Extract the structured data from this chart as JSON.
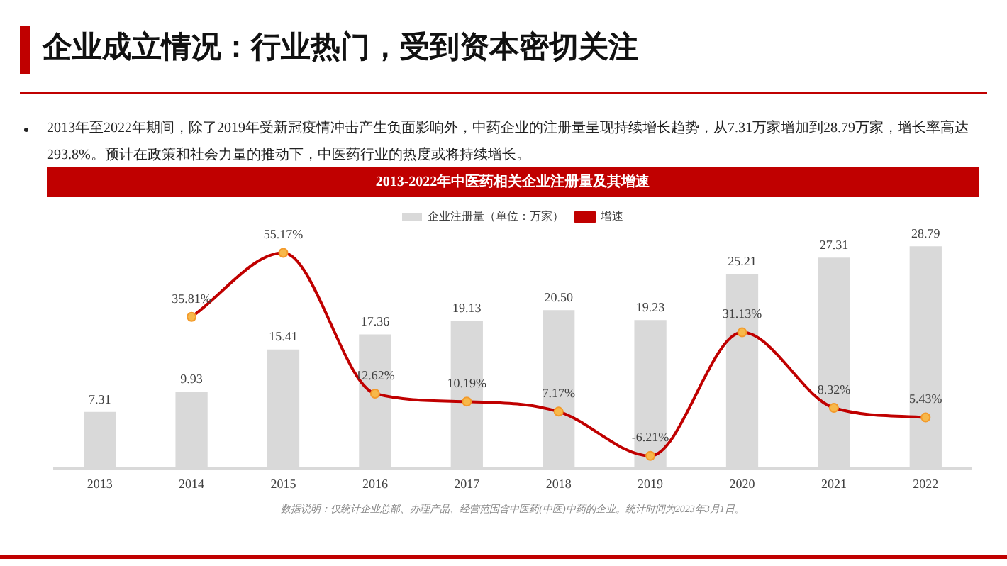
{
  "chart_data": {
    "type": "bar",
    "subtitle": "企业成立情况：行业热门，受到资本密切关注",
    "title": "2013-2022年中医药相关企业注册量及其增速",
    "categories": [
      "2013",
      "2014",
      "2015",
      "2016",
      "2017",
      "2018",
      "2019",
      "2020",
      "2021",
      "2022"
    ],
    "series": [
      {
        "name": "企业注册量（单位：万家）",
        "color": "#d9d9d9",
        "values": [
          7.31,
          9.93,
          15.41,
          17.36,
          19.13,
          20.5,
          19.23,
          25.21,
          27.31,
          28.79
        ],
        "value_labels": [
          "7.31",
          "9.93",
          "15.41",
          "17.36",
          "19.13",
          "20.50",
          "19.23",
          "25.21",
          "27.31",
          "28.79"
        ]
      },
      {
        "name": "增速",
        "type": "line",
        "axis": "y2",
        "color": "#c00000",
        "marker": "circle",
        "values": [
          null,
          35.81,
          55.17,
          12.62,
          10.19,
          7.17,
          -6.21,
          31.13,
          8.32,
          5.43
        ],
        "value_labels": [
          null,
          "35.81%",
          "55.17%",
          "12.62%",
          "10.19%",
          "7.17%",
          "-6.21%",
          "31.13%",
          "8.32%",
          "5.43%"
        ]
      }
    ],
    "tick_labels": false,
    "grid": false,
    "legend": "top",
    "data_labels": true,
    "annotations": [
      "2013年至2022年期间，除了2019年受新冠疫情冲击产生负面影响外，中药企业的注册量呈现持续增长趋势，从7.31万家增加到28.79万家，增长率高达293.8%。预计在政策和社会力量的推动下，中医药行业的热度或将持续增长。",
      "数据说明：仅统计企业总部、办理产品、经营范围含中医药(中医)中药的企业。统计时间为2023年3月1日。"
    ]
  }
}
